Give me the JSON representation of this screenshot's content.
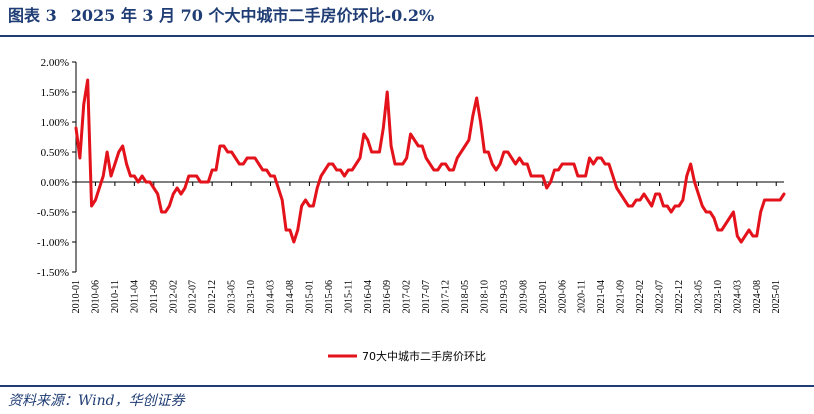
{
  "header": {
    "figure_label": "图表 3",
    "title": "2025 年 3 月 70 个大中城市二手房价环比-0.2%"
  },
  "footer": {
    "source": "资料来源：Wind，华创证券"
  },
  "colors": {
    "accent": "#1f3d74",
    "series": "#e3121b"
  },
  "chart_data": {
    "type": "line",
    "xlabel": "",
    "ylabel": "",
    "ylim": [
      -1.5,
      2.0
    ],
    "y_ticks": [
      2.0,
      1.5,
      1.0,
      0.5,
      0.0,
      -0.5,
      -1.0,
      -1.5
    ],
    "y_tick_labels": [
      "2.00%",
      "1.50%",
      "1.00%",
      "0.50%",
      "0.00%",
      "-0.50%",
      "-1.00%",
      "-1.50%"
    ],
    "x_start": "2010-01",
    "x_end": "2025-03",
    "x_tick_labels": [
      "2010-01",
      "2010-06",
      "2010-11",
      "2011-04",
      "2011-09",
      "2012-02",
      "2012-07",
      "2012-12",
      "2013-05",
      "2013-10",
      "2014-03",
      "2014-08",
      "2015-01",
      "2015-06",
      "2015-11",
      "2016-04",
      "2016-09",
      "2017-02",
      "2017-07",
      "2017-12",
      "2018-05",
      "2018-10",
      "2019-03",
      "2019-08",
      "2020-01",
      "2020-06",
      "2020-11",
      "2021-04",
      "2021-09",
      "2022-02",
      "2022-07",
      "2022-12",
      "2023-05",
      "2023-10",
      "2024-03",
      "2024-08",
      "2025-01"
    ],
    "legend_position": "bottom",
    "grid": false,
    "series": [
      {
        "name": "70大中城市二手房价环比",
        "points": [
          [
            "2010-01",
            0.9
          ],
          [
            "2010-02",
            0.4
          ],
          [
            "2010-03",
            1.3
          ],
          [
            "2010-04",
            1.7
          ],
          [
            "2010-05",
            -0.4
          ],
          [
            "2010-06",
            -0.3
          ],
          [
            "2010-07",
            -0.1
          ],
          [
            "2010-08",
            0.1
          ],
          [
            "2010-09",
            0.5
          ],
          [
            "2010-10",
            0.1
          ],
          [
            "2010-11",
            0.3
          ],
          [
            "2010-12",
            0.5
          ],
          [
            "2011-01",
            0.6
          ],
          [
            "2011-02",
            0.3
          ],
          [
            "2011-03",
            0.1
          ],
          [
            "2011-04",
            0.1
          ],
          [
            "2011-05",
            0.0
          ],
          [
            "2011-06",
            0.1
          ],
          [
            "2011-07",
            0.0
          ],
          [
            "2011-08",
            0.0
          ],
          [
            "2011-09",
            -0.1
          ],
          [
            "2011-10",
            -0.2
          ],
          [
            "2011-11",
            -0.5
          ],
          [
            "2011-12",
            -0.5
          ],
          [
            "2012-01",
            -0.4
          ],
          [
            "2012-02",
            -0.2
          ],
          [
            "2012-03",
            -0.1
          ],
          [
            "2012-04",
            -0.2
          ],
          [
            "2012-05",
            -0.1
          ],
          [
            "2012-06",
            0.1
          ],
          [
            "2012-07",
            0.1
          ],
          [
            "2012-08",
            0.1
          ],
          [
            "2012-09",
            0.0
          ],
          [
            "2012-10",
            0.0
          ],
          [
            "2012-11",
            0.0
          ],
          [
            "2012-12",
            0.2
          ],
          [
            "2013-01",
            0.2
          ],
          [
            "2013-02",
            0.6
          ],
          [
            "2013-03",
            0.6
          ],
          [
            "2013-04",
            0.5
          ],
          [
            "2013-05",
            0.5
          ],
          [
            "2013-06",
            0.4
          ],
          [
            "2013-07",
            0.3
          ],
          [
            "2013-08",
            0.3
          ],
          [
            "2013-09",
            0.4
          ],
          [
            "2013-10",
            0.4
          ],
          [
            "2013-11",
            0.4
          ],
          [
            "2013-12",
            0.3
          ],
          [
            "2014-01",
            0.2
          ],
          [
            "2014-02",
            0.2
          ],
          [
            "2014-03",
            0.1
          ],
          [
            "2014-04",
            0.1
          ],
          [
            "2014-05",
            -0.1
          ],
          [
            "2014-06",
            -0.3
          ],
          [
            "2014-07",
            -0.8
          ],
          [
            "2014-08",
            -0.8
          ],
          [
            "2014-09",
            -1.0
          ],
          [
            "2014-10",
            -0.8
          ],
          [
            "2014-11",
            -0.4
          ],
          [
            "2014-12",
            -0.3
          ],
          [
            "2015-01",
            -0.4
          ],
          [
            "2015-02",
            -0.4
          ],
          [
            "2015-03",
            -0.1
          ],
          [
            "2015-04",
            0.1
          ],
          [
            "2015-05",
            0.2
          ],
          [
            "2015-06",
            0.3
          ],
          [
            "2015-07",
            0.3
          ],
          [
            "2015-08",
            0.2
          ],
          [
            "2015-09",
            0.2
          ],
          [
            "2015-10",
            0.1
          ],
          [
            "2015-11",
            0.2
          ],
          [
            "2015-12",
            0.2
          ],
          [
            "2016-01",
            0.3
          ],
          [
            "2016-02",
            0.4
          ],
          [
            "2016-03",
            0.8
          ],
          [
            "2016-04",
            0.7
          ],
          [
            "2016-05",
            0.5
          ],
          [
            "2016-06",
            0.5
          ],
          [
            "2016-07",
            0.5
          ],
          [
            "2016-08",
            0.9
          ],
          [
            "2016-09",
            1.5
          ],
          [
            "2016-10",
            0.6
          ],
          [
            "2016-11",
            0.3
          ],
          [
            "2016-12",
            0.3
          ],
          [
            "2017-01",
            0.3
          ],
          [
            "2017-02",
            0.4
          ],
          [
            "2017-03",
            0.8
          ],
          [
            "2017-04",
            0.7
          ],
          [
            "2017-05",
            0.6
          ],
          [
            "2017-06",
            0.6
          ],
          [
            "2017-07",
            0.4
          ],
          [
            "2017-08",
            0.3
          ],
          [
            "2017-09",
            0.2
          ],
          [
            "2017-10",
            0.2
          ],
          [
            "2017-11",
            0.3
          ],
          [
            "2017-12",
            0.3
          ],
          [
            "2018-01",
            0.2
          ],
          [
            "2018-02",
            0.2
          ],
          [
            "2018-03",
            0.4
          ],
          [
            "2018-04",
            0.5
          ],
          [
            "2018-05",
            0.6
          ],
          [
            "2018-06",
            0.7
          ],
          [
            "2018-07",
            1.1
          ],
          [
            "2018-08",
            1.4
          ],
          [
            "2018-09",
            1.0
          ],
          [
            "2018-10",
            0.5
          ],
          [
            "2018-11",
            0.5
          ],
          [
            "2018-12",
            0.3
          ],
          [
            "2019-01",
            0.2
          ],
          [
            "2019-02",
            0.3
          ],
          [
            "2019-03",
            0.5
          ],
          [
            "2019-04",
            0.5
          ],
          [
            "2019-05",
            0.4
          ],
          [
            "2019-06",
            0.3
          ],
          [
            "2019-07",
            0.4
          ],
          [
            "2019-08",
            0.3
          ],
          [
            "2019-09",
            0.3
          ],
          [
            "2019-10",
            0.1
          ],
          [
            "2019-11",
            0.1
          ],
          [
            "2019-12",
            0.1
          ],
          [
            "2020-01",
            0.1
          ],
          [
            "2020-02",
            -0.1
          ],
          [
            "2020-03",
            0.0
          ],
          [
            "2020-04",
            0.2
          ],
          [
            "2020-05",
            0.2
          ],
          [
            "2020-06",
            0.3
          ],
          [
            "2020-07",
            0.3
          ],
          [
            "2020-08",
            0.3
          ],
          [
            "2020-09",
            0.3
          ],
          [
            "2020-10",
            0.1
          ],
          [
            "2020-11",
            0.1
          ],
          [
            "2020-12",
            0.1
          ],
          [
            "2021-01",
            0.4
          ],
          [
            "2021-02",
            0.3
          ],
          [
            "2021-03",
            0.4
          ],
          [
            "2021-04",
            0.4
          ],
          [
            "2021-05",
            0.3
          ],
          [
            "2021-06",
            0.3
          ],
          [
            "2021-07",
            0.1
          ],
          [
            "2021-08",
            -0.1
          ],
          [
            "2021-09",
            -0.2
          ],
          [
            "2021-10",
            -0.3
          ],
          [
            "2021-11",
            -0.4
          ],
          [
            "2021-12",
            -0.4
          ],
          [
            "2022-01",
            -0.3
          ],
          [
            "2022-02",
            -0.3
          ],
          [
            "2022-03",
            -0.2
          ],
          [
            "2022-04",
            -0.3
          ],
          [
            "2022-05",
            -0.4
          ],
          [
            "2022-06",
            -0.2
          ],
          [
            "2022-07",
            -0.2
          ],
          [
            "2022-08",
            -0.4
          ],
          [
            "2022-09",
            -0.4
          ],
          [
            "2022-10",
            -0.5
          ],
          [
            "2022-11",
            -0.4
          ],
          [
            "2022-12",
            -0.4
          ],
          [
            "2023-01",
            -0.3
          ],
          [
            "2023-02",
            0.1
          ],
          [
            "2023-03",
            0.3
          ],
          [
            "2023-04",
            0.0
          ],
          [
            "2023-05",
            -0.2
          ],
          [
            "2023-06",
            -0.4
          ],
          [
            "2023-07",
            -0.5
          ],
          [
            "2023-08",
            -0.5
          ],
          [
            "2023-09",
            -0.6
          ],
          [
            "2023-10",
            -0.8
          ],
          [
            "2023-11",
            -0.8
          ],
          [
            "2023-12",
            -0.7
          ],
          [
            "2024-01",
            -0.6
          ],
          [
            "2024-02",
            -0.5
          ],
          [
            "2024-03",
            -0.9
          ],
          [
            "2024-04",
            -1.0
          ],
          [
            "2024-05",
            -0.9
          ],
          [
            "2024-06",
            -0.8
          ],
          [
            "2024-07",
            -0.9
          ],
          [
            "2024-08",
            -0.9
          ],
          [
            "2024-09",
            -0.5
          ],
          [
            "2024-10",
            -0.3
          ],
          [
            "2024-11",
            -0.3
          ],
          [
            "2024-12",
            -0.3
          ],
          [
            "2025-01",
            -0.3
          ],
          [
            "2025-02",
            -0.3
          ],
          [
            "2025-03",
            -0.2
          ]
        ]
      }
    ]
  }
}
